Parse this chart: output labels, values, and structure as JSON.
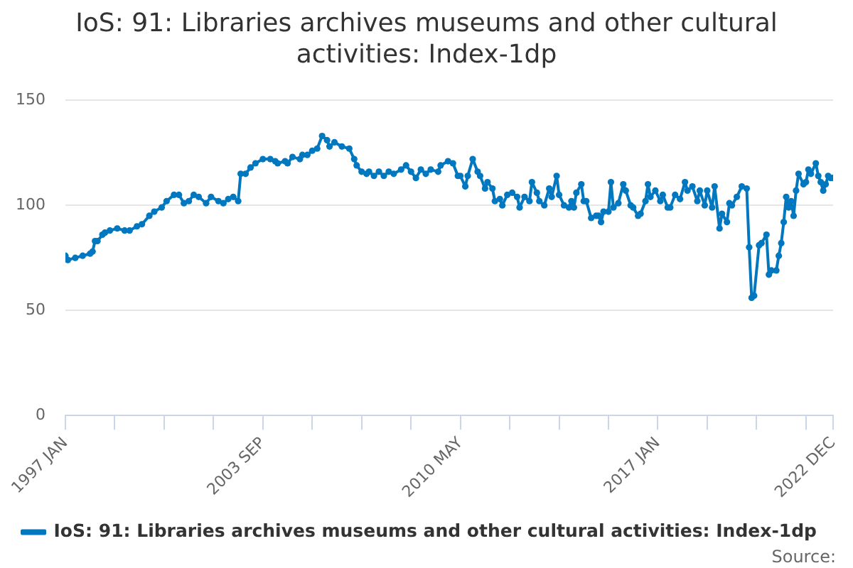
{
  "chart_data": {
    "type": "line",
    "title": "IoS: 91: Libraries archives museums and other cultural activities: Index-1dp",
    "annotations": [
      "Source:"
    ],
    "x": [
      "1997-01",
      "1997-02",
      "1997-05",
      "1997-08",
      "1997-11",
      "1997-12",
      "1998-01",
      "1998-02",
      "1998-04",
      "1998-05",
      "1998-07",
      "1998-10",
      "1999-01",
      "1999-03",
      "1999-06",
      "1999-08",
      "1999-11",
      "2000-01",
      "2000-04",
      "2000-06",
      "2000-09",
      "2000-11",
      "2001-01",
      "2001-03",
      "2001-05",
      "2001-07",
      "2001-10",
      "2001-12",
      "2002-03",
      "2002-05",
      "2002-07",
      "2002-09",
      "2002-11",
      "2002-12",
      "2003-02",
      "2003-04",
      "2003-06",
      "2003-09",
      "2003-12",
      "2004-02",
      "2004-03",
      "2004-06",
      "2004-07",
      "2004-09",
      "2004-12",
      "2005-01",
      "2005-03",
      "2005-05",
      "2005-07",
      "2005-09",
      "2005-11",
      "2005-12",
      "2006-02",
      "2006-05",
      "2006-08",
      "2006-10",
      "2006-11",
      "2007-01",
      "2007-03",
      "2007-04",
      "2007-06",
      "2007-08",
      "2007-10",
      "2007-12",
      "2008-02",
      "2008-05",
      "2008-07",
      "2008-09",
      "2008-11",
      "2009-01",
      "2009-03",
      "2009-05",
      "2009-08",
      "2009-09",
      "2009-12",
      "2010-02",
      "2010-04",
      "2010-05",
      "2010-07",
      "2010-08",
      "2010-10",
      "2010-12",
      "2011-01",
      "2011-03",
      "2011-04",
      "2011-06",
      "2011-07",
      "2011-09",
      "2011-10",
      "2011-12",
      "2012-02",
      "2012-04",
      "2012-05",
      "2012-07",
      "2012-09",
      "2012-10",
      "2012-12",
      "2013-01",
      "2013-03",
      "2013-05",
      "2013-06",
      "2013-08",
      "2013-09",
      "2013-11",
      "2014-01",
      "2014-02",
      "2014-03",
      "2014-04",
      "2014-06",
      "2014-07",
      "2014-08",
      "2014-10",
      "2014-12",
      "2015-01",
      "2015-02",
      "2015-03",
      "2015-05",
      "2015-06",
      "2015-07",
      "2015-09",
      "2015-11",
      "2015-12",
      "2016-02",
      "2016-03",
      "2016-05",
      "2016-06",
      "2016-08",
      "2016-09",
      "2016-10",
      "2016-12",
      "2017-02",
      "2017-03",
      "2017-05",
      "2017-06",
      "2017-08",
      "2017-10",
      "2017-12",
      "2018-01",
      "2018-03",
      "2018-05",
      "2018-06",
      "2018-08",
      "2018-09",
      "2018-11",
      "2018-12",
      "2019-02",
      "2019-03",
      "2019-05",
      "2019-06",
      "2019-07",
      "2019-09",
      "2019-11",
      "2020-01",
      "2020-02",
      "2020-03",
      "2020-04",
      "2020-06",
      "2020-07",
      "2020-09",
      "2020-10",
      "2020-11",
      "2021-01",
      "2021-02",
      "2021-03",
      "2021-04",
      "2021-05",
      "2021-06",
      "2021-07",
      "2021-08",
      "2021-09",
      "2021-10",
      "2021-12",
      "2022-01",
      "2022-02",
      "2022-03",
      "2022-05",
      "2022-06",
      "2022-07",
      "2022-08",
      "2022-09",
      "2022-10",
      "2022-11",
      "2022-12"
    ],
    "series": [
      {
        "name": "IoS: 91: Libraries archives museums and other cultural activities: Index-1dp",
        "color": "#0077bf",
        "values": [
          76,
          74,
          75,
          76,
          77,
          78,
          83,
          83,
          86,
          87,
          88,
          89,
          88,
          88,
          90,
          91,
          95,
          97,
          99,
          102,
          105,
          105,
          101,
          102,
          105,
          104,
          101,
          104,
          102,
          101,
          103,
          104,
          102,
          115,
          115,
          118,
          120,
          122,
          122,
          121,
          120,
          121,
          120,
          123,
          122,
          124,
          124,
          126,
          127,
          133,
          131,
          128,
          130,
          128,
          127,
          122,
          119,
          116,
          115,
          116,
          114,
          116,
          114,
          116,
          115,
          117,
          119,
          116,
          113,
          117,
          115,
          117,
          116,
          119,
          121,
          120,
          114,
          114,
          109,
          114,
          122,
          116,
          114,
          108,
          111,
          108,
          102,
          103,
          100,
          105,
          106,
          104,
          99,
          104,
          102,
          111,
          106,
          102,
          100,
          108,
          104,
          114,
          105,
          100,
          99,
          102,
          99,
          106,
          110,
          102,
          102,
          94,
          95,
          95,
          92,
          97,
          97,
          111,
          99,
          101,
          110,
          107,
          100,
          99,
          95,
          96,
          102,
          110,
          104,
          107,
          102,
          105,
          99,
          99,
          105,
          103,
          111,
          107,
          109,
          102,
          107,
          100,
          107,
          99,
          109,
          89,
          96,
          92,
          101,
          100,
          104,
          109,
          108,
          80,
          56,
          57,
          81,
          82,
          86,
          67,
          69,
          69,
          76,
          82,
          92,
          104,
          99,
          102,
          95,
          107,
          115,
          110,
          111,
          117,
          115,
          120,
          114,
          111,
          107,
          110,
          114,
          113,
          113
        ]
      }
    ],
    "xlim": [
      "1997-01",
      "2022-12"
    ],
    "xticks": [
      {
        "value": "1997-01",
        "label": "1997 JAN"
      },
      {
        "value": "1998-09",
        "label": null
      },
      {
        "value": "2000-05",
        "label": null
      },
      {
        "value": "2002-01",
        "label": null
      },
      {
        "value": "2003-09",
        "label": "2003 SEP"
      },
      {
        "value": "2005-05",
        "label": null
      },
      {
        "value": "2007-01",
        "label": null
      },
      {
        "value": "2008-09",
        "label": null
      },
      {
        "value": "2010-05",
        "label": "2010 MAY"
      },
      {
        "value": "2012-01",
        "label": null
      },
      {
        "value": "2013-09",
        "label": null
      },
      {
        "value": "2015-05",
        "label": null
      },
      {
        "value": "2017-01",
        "label": "2017 JAN"
      },
      {
        "value": "2018-09",
        "label": null
      },
      {
        "value": "2020-05",
        "label": null
      },
      {
        "value": "2022-01",
        "label": null
      },
      {
        "value": "2022-12",
        "label": "2022 DEC"
      }
    ],
    "ylim": [
      0,
      150
    ],
    "yticks": [
      0,
      50,
      100,
      150
    ],
    "grid": "y",
    "legend": "bottom",
    "marker": "circle"
  }
}
